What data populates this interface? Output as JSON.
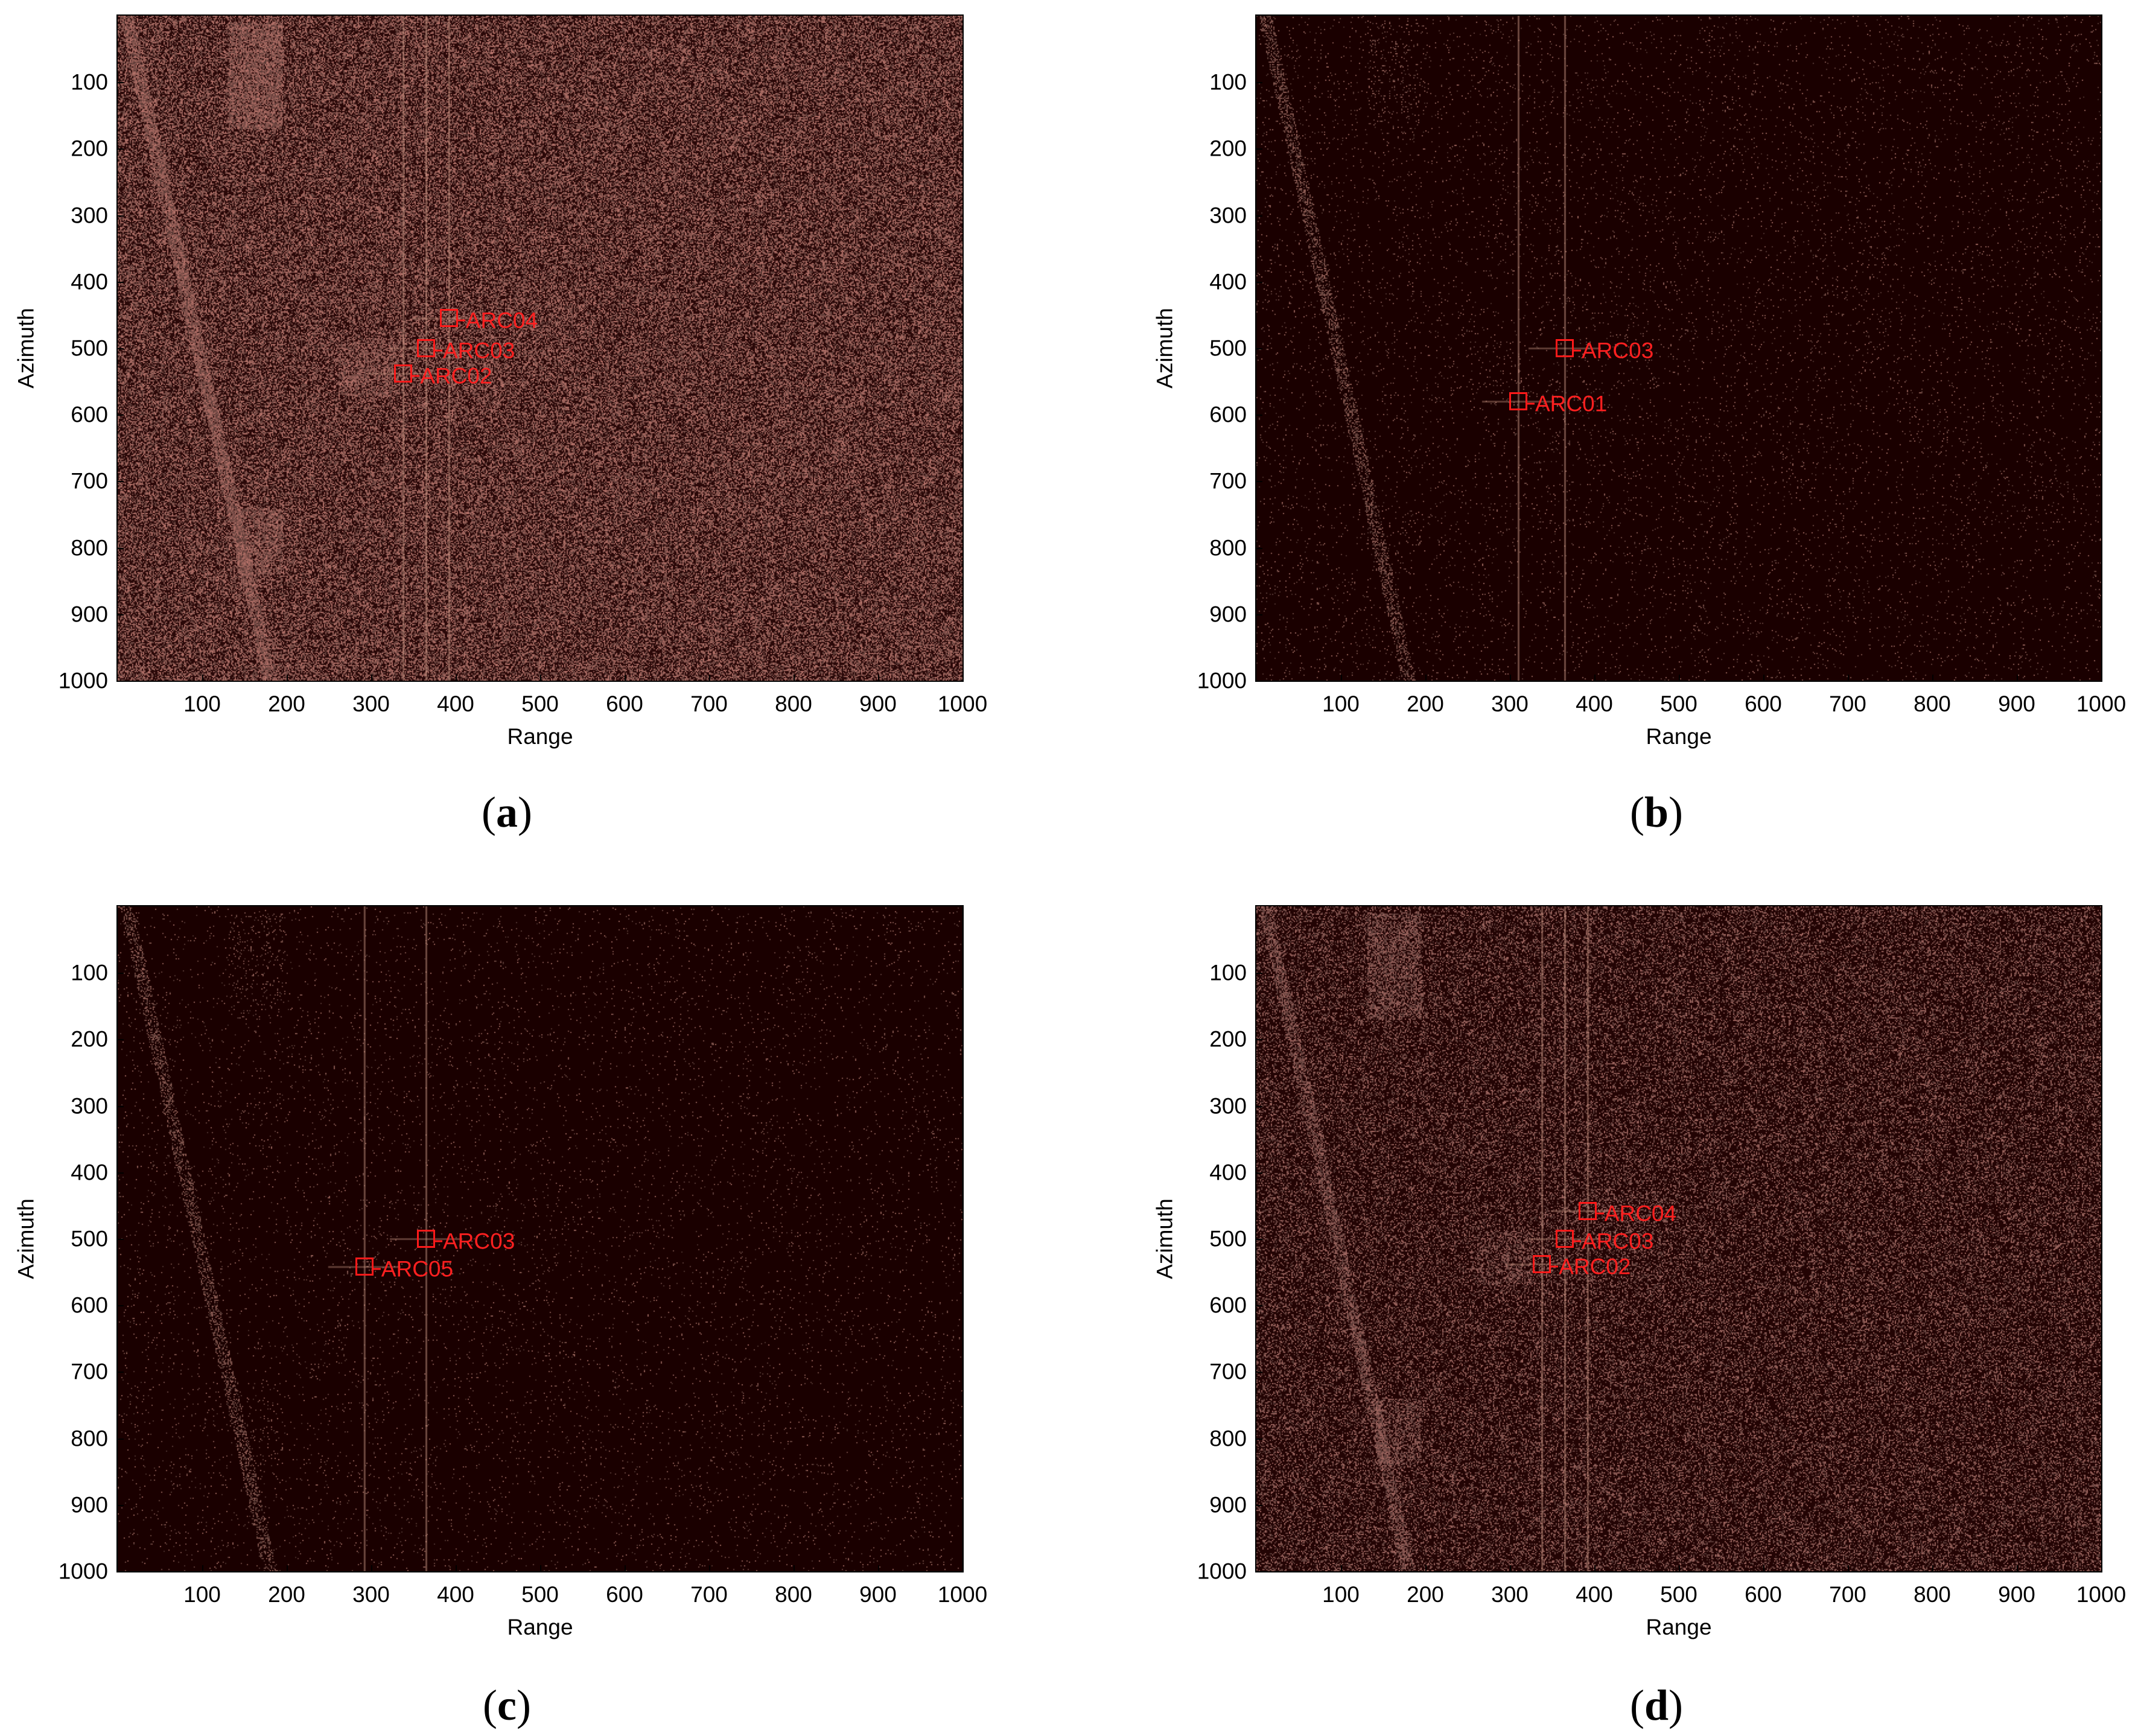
{
  "panels": [
    {
      "id": "a",
      "caption": "a",
      "background": "#2a0808",
      "speckle": "#a86a62",
      "density": 0.55,
      "markers": [
        {
          "label": "ARC04",
          "range": 392,
          "azimuth": 455
        },
        {
          "label": "ARC03",
          "range": 365,
          "azimuth": 500
        },
        {
          "label": "ARC02",
          "range": 338,
          "azimuth": 538
        }
      ]
    },
    {
      "id": "b",
      "caption": "b",
      "background": "#1a0000",
      "speckle": "#8a5a52",
      "density": 0.03,
      "markers": [
        {
          "label": "ARC03",
          "range": 365,
          "azimuth": 500
        },
        {
          "label": "ARC01",
          "range": 310,
          "azimuth": 580
        }
      ]
    },
    {
      "id": "c",
      "caption": "c",
      "background": "#1a0000",
      "speckle": "#8a5a52",
      "density": 0.025,
      "markers": [
        {
          "label": "ARC03",
          "range": 365,
          "azimuth": 500
        },
        {
          "label": "ARC05",
          "range": 292,
          "azimuth": 542
        }
      ]
    },
    {
      "id": "d",
      "caption": "d",
      "background": "#230404",
      "speckle": "#96605a",
      "density": 0.32,
      "markers": [
        {
          "label": "ARC04",
          "range": 392,
          "azimuth": 458
        },
        {
          "label": "ARC03",
          "range": 365,
          "azimuth": 500
        },
        {
          "label": "ARC02",
          "range": 338,
          "azimuth": 538
        }
      ]
    }
  ],
  "axes": {
    "xlabel": "Range",
    "ylabel": "Azimuth",
    "xlim": [
      0,
      1000
    ],
    "ylim": [
      0,
      1000
    ],
    "xticks": [
      "100",
      "200",
      "300",
      "400",
      "500",
      "600",
      "700",
      "800",
      "900",
      "1000"
    ],
    "yticks": [
      "100",
      "200",
      "300",
      "400",
      "500",
      "600",
      "700",
      "800",
      "900",
      "1000"
    ]
  }
}
